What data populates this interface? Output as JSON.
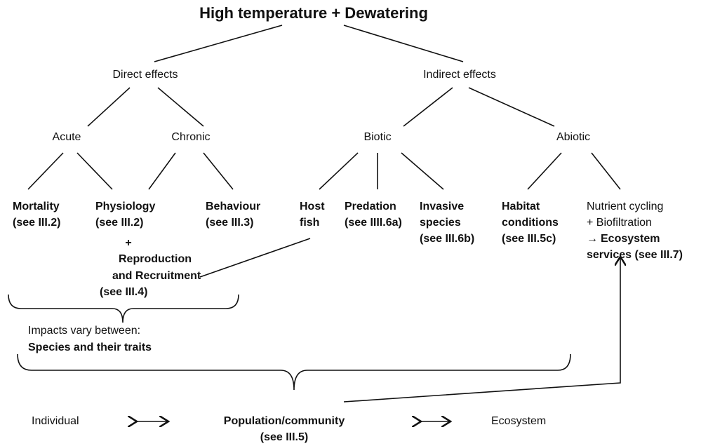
{
  "title": "High temperature + Dewatering",
  "effects": [
    "Direct effects",
    "Indirect effects"
  ],
  "types": [
    "Acute",
    "Chronic",
    "Biotic",
    "Abiotic"
  ],
  "outcomes": {
    "mortality": [
      "Mortality",
      "(see III.2)"
    ],
    "physiology": [
      "Physiology",
      "(see III.2)"
    ],
    "behaviour": [
      "Behaviour",
      "(see III.3)"
    ],
    "host_fish": [
      "Host",
      "fish"
    ],
    "predation": [
      "Predation",
      "(see IIII.6a)"
    ],
    "invasive": [
      "Invasive",
      "species",
      "(see III.6b)"
    ],
    "habitat": [
      "Habitat",
      "conditions",
      "(see III.5c)"
    ],
    "nutrient": {
      "plain": [
        "Nutrient cycling",
        "+ Biofiltration"
      ],
      "arrow": "→",
      "bold": [
        "Ecosystem",
        "services (see III.7)"
      ]
    }
  },
  "reproduction": {
    "plus": "+",
    "lines": [
      "Reproduction",
      "and Recruitment",
      "(see III.4)"
    ]
  },
  "impacts": {
    "intro": "Impacts vary between:",
    "bold": "Species and their traits"
  },
  "scale": {
    "individual": "Individual",
    "population": "Population/community",
    "population_ref": "(see III.5)",
    "ecosystem": "Ecosystem"
  }
}
